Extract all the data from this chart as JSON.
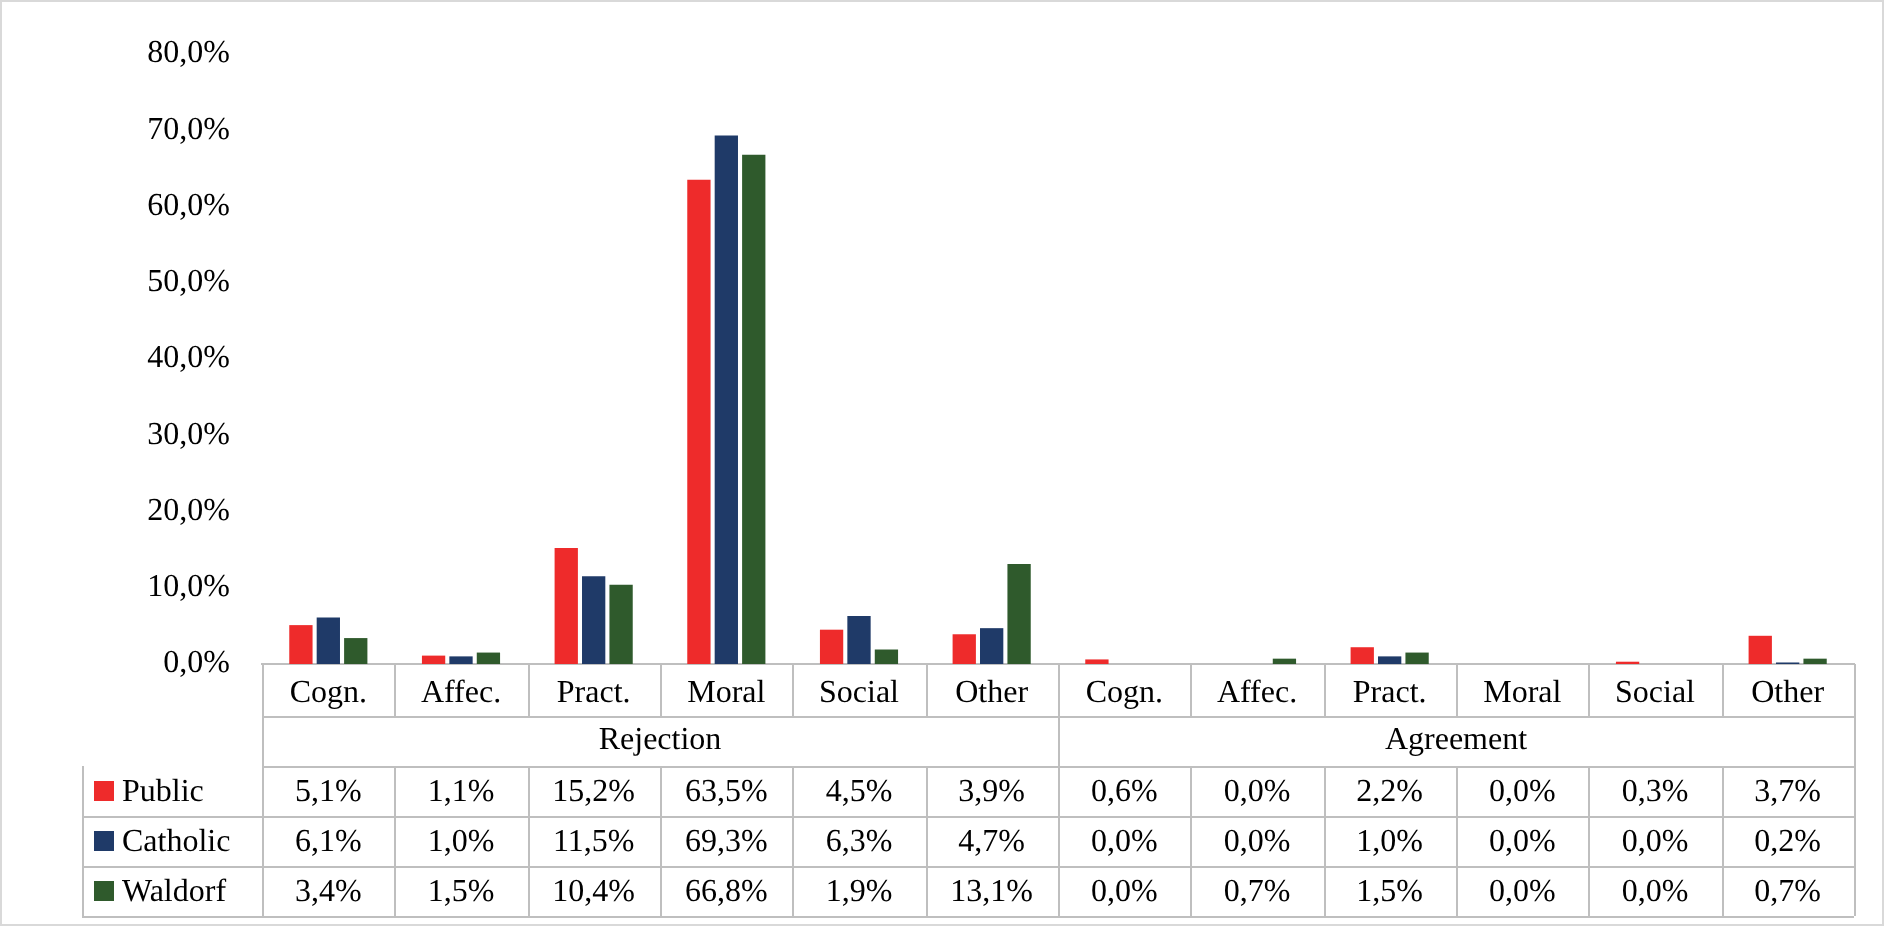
{
  "chart_data": {
    "type": "bar",
    "categories": [
      "Cogn.",
      "Affec.",
      "Pract.",
      "Moral",
      "Social",
      "Other",
      "Cogn.",
      "Affec.",
      "Pract.",
      "Moral",
      "Social",
      "Other"
    ],
    "series": [
      {
        "name": "Public",
        "color": "#ee2b2b",
        "values": [
          5.1,
          1.1,
          15.2,
          63.5,
          4.5,
          3.9,
          0.6,
          0.0,
          2.2,
          0.0,
          0.3,
          3.7
        ],
        "value_labels": [
          "5,1%",
          "1,1%",
          "15,2%",
          "63,5%",
          "4,5%",
          "3,9%",
          "0,6%",
          "0,0%",
          "2,2%",
          "0,0%",
          "0,3%",
          "3,7%"
        ]
      },
      {
        "name": "Catholic",
        "color": "#1f3a68",
        "values": [
          6.1,
          1.0,
          11.5,
          69.3,
          6.3,
          4.7,
          0.0,
          0.0,
          1.0,
          0.0,
          0.0,
          0.2
        ],
        "value_labels": [
          "6,1%",
          "1,0%",
          "11,5%",
          "69,3%",
          "6,3%",
          "4,7%",
          "0,0%",
          "0,0%",
          "1,0%",
          "0,0%",
          "0,0%",
          "0,2%"
        ]
      },
      {
        "name": "Waldorf",
        "color": "#2f5a2c",
        "values": [
          3.4,
          1.5,
          10.4,
          66.8,
          1.9,
          13.1,
          0.0,
          0.7,
          1.5,
          0.0,
          0.0,
          0.7
        ],
        "value_labels": [
          "3,4%",
          "1,5%",
          "10,4%",
          "66,8%",
          "1,9%",
          "13,1%",
          "0,0%",
          "0,7%",
          "1,5%",
          "0,0%",
          "0,0%",
          "0,7%"
        ]
      }
    ],
    "annotations": [
      "Rejection",
      "Agreement"
    ],
    "ylim": [
      0,
      80
    ],
    "yticks": [
      {
        "value": 0,
        "label": "0,0%"
      },
      {
        "value": 10,
        "label": "10,0%"
      },
      {
        "value": 20,
        "label": "20,0%"
      },
      {
        "value": 30,
        "label": "30,0%"
      },
      {
        "value": 40,
        "label": "40,0%"
      },
      {
        "value": 50,
        "label": "50,0%"
      },
      {
        "value": 60,
        "label": "60,0%"
      },
      {
        "value": 70,
        "label": "70,0%"
      },
      {
        "value": 80,
        "label": "80,0%"
      }
    ],
    "grid": false,
    "legend": "bottom left"
  }
}
